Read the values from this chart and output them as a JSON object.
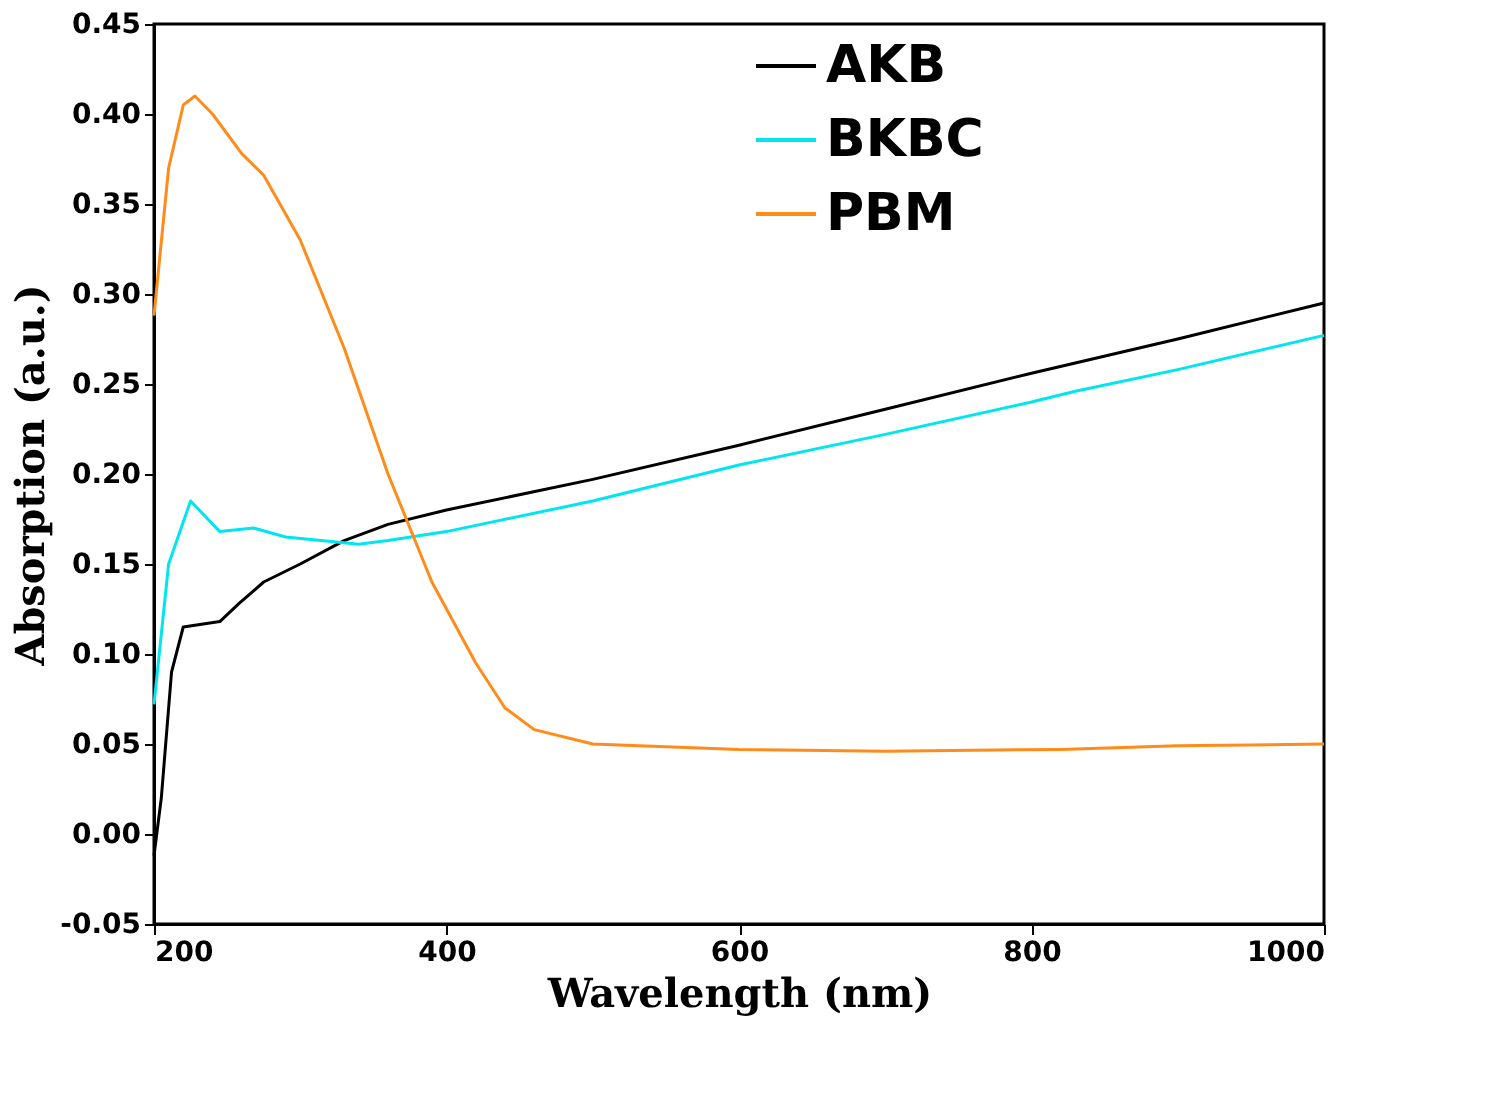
{
  "chart_data": {
    "type": "line",
    "xlabel": "Wavelength (nm)",
    "ylabel": "Absorption (a.u.)",
    "xlim": [
      200,
      1000
    ],
    "xticks": [
      200,
      400,
      600,
      800,
      1000
    ],
    "ylim": [
      -0.05,
      0.45
    ],
    "yticks": [
      -0.05,
      {
        "value": 0,
        "label": "0.00"
      },
      0.05,
      {
        "value": 0.1,
        "label": "0.10"
      },
      0.15,
      {
        "value": 0.2,
        "label": "0.20"
      },
      0.25,
      {
        "value": 0.3,
        "label": "0.30"
      },
      0.35,
      {
        "value": 0.4,
        "label": "0.40"
      },
      0.45
    ],
    "legend": "top",
    "grid": false,
    "marker": "none",
    "line_style": "solid",
    "series": [
      {
        "name": "AKB",
        "color": "#000000",
        "x": [
          200,
          205,
          212,
          220,
          245,
          258,
          275,
          300,
          330,
          360,
          400,
          500,
          600,
          700,
          800,
          900,
          1000
        ],
        "values": [
          -0.012,
          0.02,
          0.09,
          0.115,
          0.118,
          0.128,
          0.14,
          0.15,
          0.163,
          0.172,
          0.18,
          0.197,
          0.216,
          0.236,
          0.256,
          0.275,
          0.295
        ]
      },
      {
        "name": "BKBC",
        "color": "#00e5ee",
        "x": [
          200,
          210,
          225,
          245,
          268,
          290,
          340,
          360,
          400,
          500,
          600,
          700,
          800,
          830,
          900,
          1000
        ],
        "values": [
          0.072,
          0.15,
          0.185,
          0.168,
          0.17,
          0.165,
          0.161,
          0.163,
          0.168,
          0.185,
          0.205,
          0.222,
          0.24,
          0.246,
          0.258,
          0.277
        ]
      },
      {
        "name": "PBM",
        "color": "#ff8c1a",
        "x": [
          200,
          210,
          220,
          228,
          240,
          260,
          275,
          300,
          330,
          360,
          390,
          420,
          440,
          460,
          500,
          600,
          700,
          820,
          900,
          1000
        ],
        "values": [
          0.288,
          0.37,
          0.405,
          0.41,
          0.4,
          0.378,
          0.366,
          0.33,
          0.27,
          0.2,
          0.14,
          0.095,
          0.07,
          0.058,
          0.05,
          0.047,
          0.046,
          0.047,
          0.049,
          0.05
        ]
      }
    ]
  }
}
